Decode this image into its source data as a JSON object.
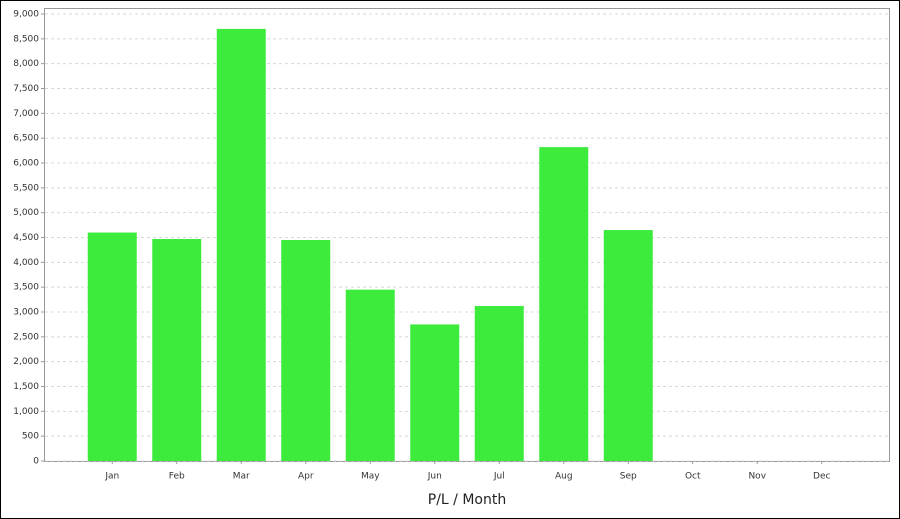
{
  "chart_data": {
    "type": "bar",
    "xlabel": "P/L / Month",
    "categories": [
      "Jan",
      "Feb",
      "Mar",
      "Apr",
      "May",
      "Jun",
      "Jul",
      "Aug",
      "Sep",
      "Oct",
      "Nov",
      "Dec"
    ],
    "values": [
      4600,
      4470,
      8700,
      4450,
      3450,
      2750,
      3120,
      6320,
      4650,
      null,
      null,
      null
    ],
    "color": "#3deb3d",
    "ylim": [
      0,
      9000
    ],
    "yticks": [
      0,
      500,
      {
        "value": 1000,
        "label": "1,000"
      },
      {
        "value": 1500,
        "label": "1,500"
      },
      {
        "value": 2000,
        "label": "2,000"
      },
      {
        "value": 2500,
        "label": "2,500"
      },
      {
        "value": 3000,
        "label": "3,000"
      },
      {
        "value": 3500,
        "label": "3,500"
      },
      {
        "value": 4000,
        "label": "4,000"
      },
      {
        "value": 4500,
        "label": "4,500"
      },
      {
        "value": 5000,
        "label": "5,000"
      },
      {
        "value": 5500,
        "label": "5,500"
      },
      {
        "value": 6000,
        "label": "6,000"
      },
      {
        "value": 6500,
        "label": "6,500"
      },
      {
        "value": 7000,
        "label": "7,000"
      },
      {
        "value": 7500,
        "label": "7,500"
      },
      {
        "value": 8000,
        "label": "8,000"
      },
      {
        "value": 8500,
        "label": "8,500"
      },
      {
        "value": 9000,
        "label": "9,000"
      }
    ],
    "grid": true
  }
}
